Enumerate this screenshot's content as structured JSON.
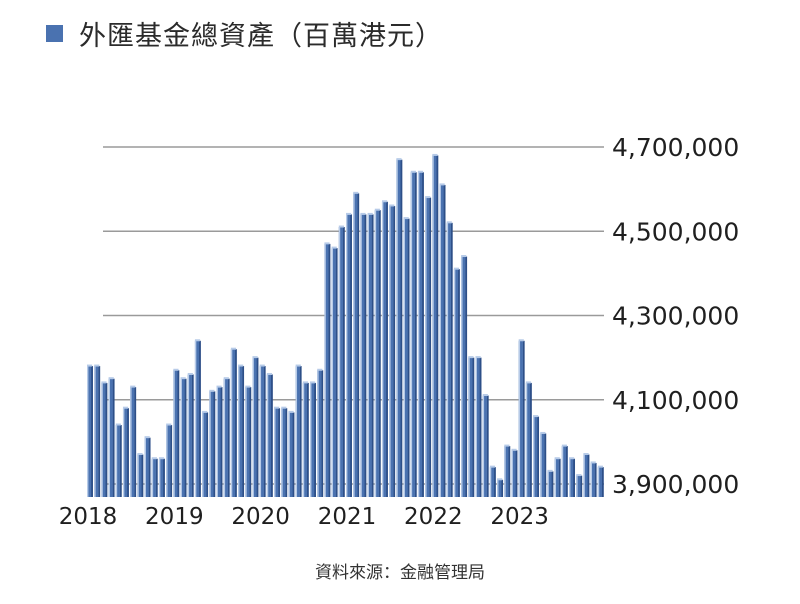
{
  "chart_data": {
    "type": "bar",
    "legend": [
      {
        "label": "外匯基金總資產（百萬港元）",
        "color": "#4a72b0"
      }
    ],
    "legend_position": "top-left",
    "y_axis_position": "right",
    "grid": true,
    "ylim": [
      3900000,
      4700000
    ],
    "yticks": [
      "4,700,000",
      "4,500,000",
      "4,300,000",
      "4,100,000",
      "3,900,000"
    ],
    "ytick_values": [
      4700000,
      4500000,
      4300000,
      4100000,
      3900000
    ],
    "xtick_labels": [
      {
        "label": "2018",
        "index": 0
      },
      {
        "label": "2019",
        "index": 12
      },
      {
        "label": "2020",
        "index": 24
      },
      {
        "label": "2021",
        "index": 36
      },
      {
        "label": "2022",
        "index": 48
      },
      {
        "label": "2023",
        "index": 60
      }
    ],
    "values": [
      4180000,
      4180000,
      4140000,
      4150000,
      4040000,
      4080000,
      4130000,
      3970000,
      4010000,
      3960000,
      3960000,
      4040000,
      4170000,
      4150000,
      4160000,
      4240000,
      4070000,
      4120000,
      4130000,
      4150000,
      4220000,
      4180000,
      4130000,
      4200000,
      4180000,
      4160000,
      4080000,
      4080000,
      4070000,
      4180000,
      4140000,
      4140000,
      4170000,
      4470000,
      4460000,
      4510000,
      4540000,
      4590000,
      4540000,
      4540000,
      4550000,
      4570000,
      4560000,
      4670000,
      4530000,
      4640000,
      4640000,
      4580000,
      4680000,
      4610000,
      4520000,
      4410000,
      4440000,
      4200000,
      4200000,
      4110000,
      3940000,
      3910000,
      3990000,
      3980000,
      4240000,
      4140000,
      4060000,
      4020000,
      3930000,
      3960000,
      3990000,
      3960000,
      3920000,
      3970000,
      3950000,
      3940000
    ],
    "colors": {
      "bar": "#4a72b0",
      "bar_dark": "#2d4f88",
      "bar_light": "#b7cbe8",
      "grid": "#9a9a9a",
      "text": "#1f1f1f"
    }
  },
  "source_text": "資料來源：金融管理局"
}
